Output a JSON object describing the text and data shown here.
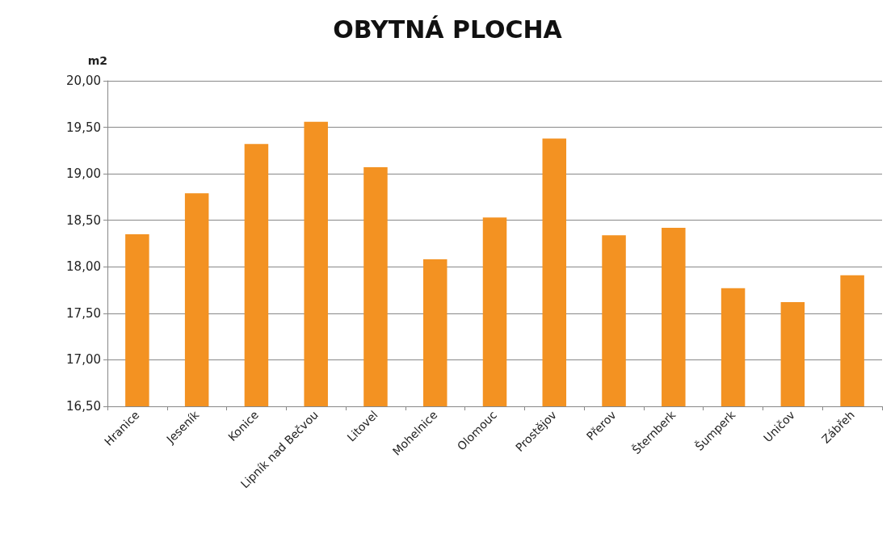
{
  "chart_data": {
    "type": "bar",
    "title": "OBYTNÁ PLOCHA",
    "ylabel": "m2",
    "categories": [
      "Hranice",
      "Jeseník",
      "Konice",
      "Lipník nad Bečvou",
      "Litovel",
      "Mohelnice",
      "Olomouc",
      "Prostějov",
      "Přerov",
      "Šternberk",
      "Šumperk",
      "Uničov",
      "Zábřeh"
    ],
    "values": [
      18.35,
      18.79,
      19.32,
      19.56,
      19.07,
      18.08,
      18.53,
      19.38,
      18.34,
      18.42,
      17.77,
      17.62,
      17.91
    ],
    "color": "#f39222",
    "ylim": [
      16.5,
      20
    ],
    "yticks": [
      {
        "value": 16.5,
        "label": "16,50"
      },
      {
        "value": 17,
        "label": "17,00"
      },
      {
        "value": 17.5,
        "label": "17,50"
      },
      {
        "value": 18,
        "label": "18,00"
      },
      {
        "value": 18.5,
        "label": "18,50"
      },
      {
        "value": 19,
        "label": "19,00"
      },
      {
        "value": 19.5,
        "label": "19,50"
      },
      {
        "value": 20,
        "label": "20,00"
      }
    ],
    "grid": "y"
  }
}
